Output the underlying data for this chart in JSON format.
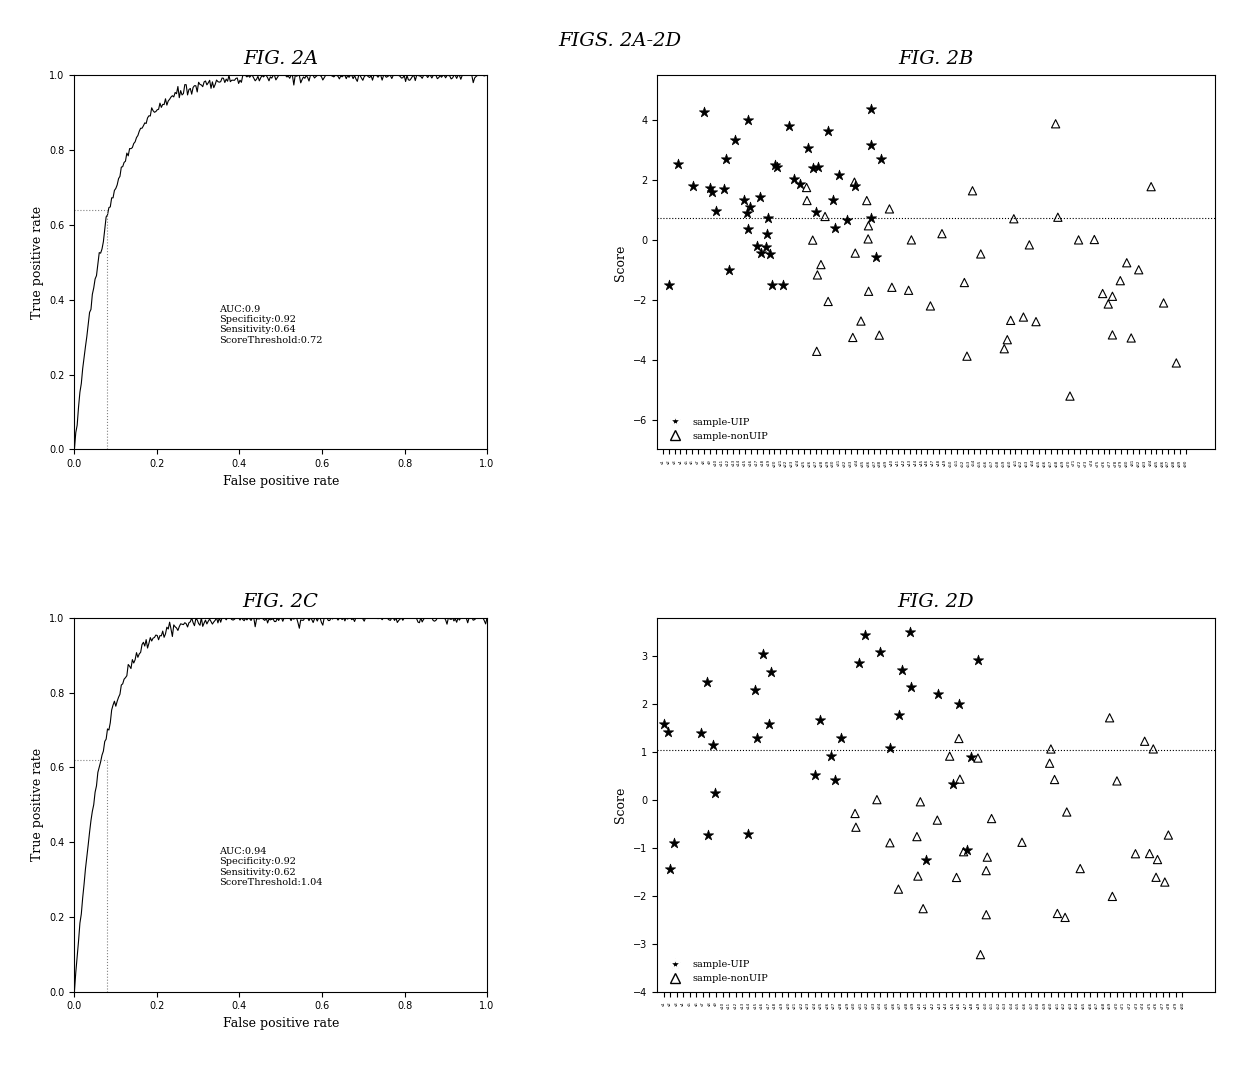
{
  "main_title": "FIGS. 2A-2D",
  "fig2a_title": "FIG. 2A",
  "fig2b_title": "FIG. 2B",
  "fig2c_title": "FIG. 2C",
  "fig2d_title": "FIG. 2D",
  "fig2a_annotation": "AUC:0.9\nSpecificity:0.92\nSensitivity:0.64\nScoreThreshold:0.72",
  "fig2c_annotation": "AUC:0.94\nSpecificity:0.92\nSensitivity:0.62\nScoreThreshold:1.04",
  "fig2a_vline": 0.08,
  "fig2a_hline": 0.64,
  "fig2c_vline": 0.08,
  "fig2c_hline": 0.62,
  "fig2b_threshold": 0.72,
  "fig2d_threshold": 1.04,
  "xlabel_roc": "False positive rate",
  "ylabel_roc": "True positive rate",
  "ylabel_scatter": "Score",
  "background_color": "#ffffff",
  "curve_color": "#000000",
  "annotation_fontsize": 8,
  "axis_fontsize": 9,
  "title_fontsize": 14
}
